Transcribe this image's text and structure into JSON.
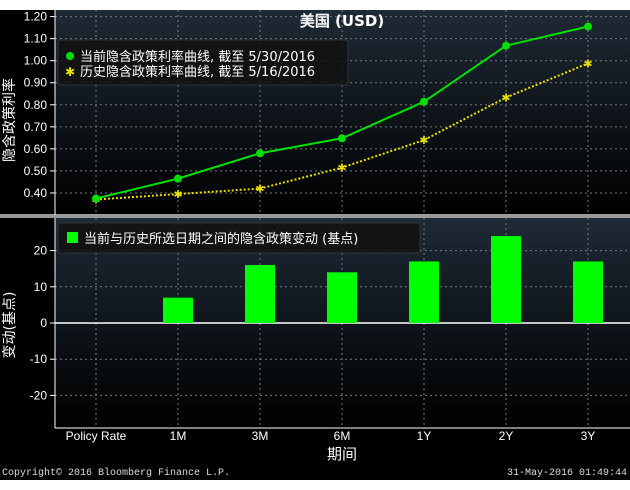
{
  "chart_data": [
    {
      "type": "line",
      "title": "美国 (USD)",
      "ylabel": "隐含政策利率",
      "categories": [
        "Policy Rate",
        "1M",
        "3M",
        "6M",
        "1Y",
        "2Y",
        "3Y"
      ],
      "ylim": [
        0.3,
        1.23
      ],
      "yticks": [
        0.4,
        0.5,
        0.6,
        0.7,
        0.8,
        0.9,
        1.0,
        1.1,
        1.2
      ],
      "grid": true,
      "legend_position": "top-left",
      "series": [
        {
          "name": "当前隐含政策利率曲线, 截至 5/30/2016",
          "color": "#00e000",
          "marker": "circle",
          "values": [
            0.375,
            0.465,
            0.58,
            0.648,
            0.814,
            1.068,
            1.155
          ]
        },
        {
          "name": "历史隐含政策利率曲线, 截至 5/16/2016",
          "color": "#e8e000",
          "marker": "star",
          "values": [
            0.37,
            0.395,
            0.42,
            0.515,
            0.64,
            0.833,
            0.988
          ]
        }
      ]
    },
    {
      "type": "bar",
      "ylabel": "变动(基点)",
      "xlabel": "期间",
      "categories": [
        "Policy Rate",
        "1M",
        "3M",
        "6M",
        "1Y",
        "2Y",
        "3Y"
      ],
      "ylim": [
        -29,
        29
      ],
      "yticks": [
        -20,
        -10,
        0,
        10,
        20
      ],
      "grid": true,
      "legend_position": "top-left",
      "series": [
        {
          "name": "当前与历史所选日期之间的隐含政策变动 (基点)",
          "color": "#00ff00",
          "values": [
            0,
            7,
            16,
            14,
            17,
            24,
            17
          ]
        }
      ]
    }
  ],
  "footer": {
    "copyright": "Copyright© 2016 Bloomberg Finance L.P.",
    "timestamp": "31-May-2016 01:49:44"
  }
}
